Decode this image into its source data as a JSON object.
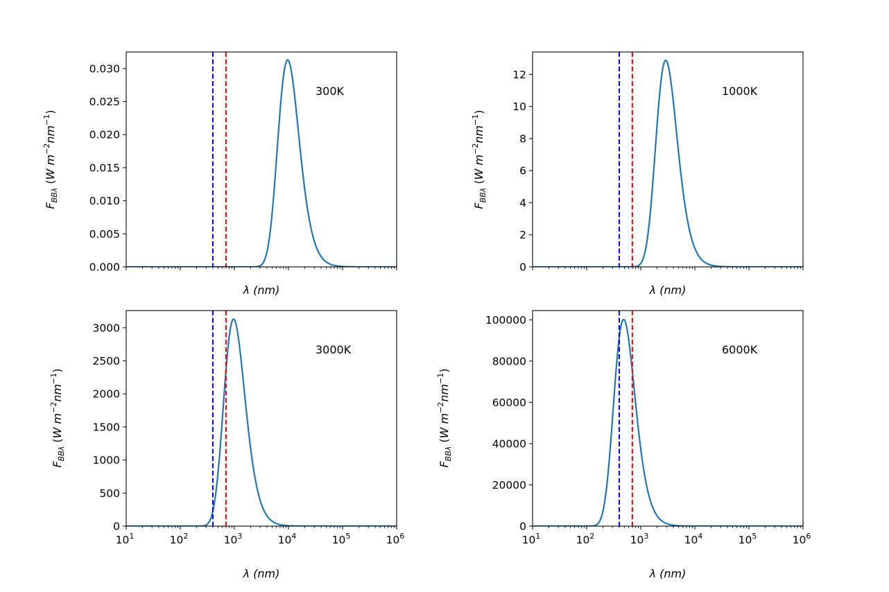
{
  "chart_data": [
    {
      "type": "line",
      "title": "",
      "annotation": "300K",
      "temperature_k": 300,
      "xlabel": "λ (nm)",
      "ylabel": "F_BBλ (W m^-2 nm^-1)",
      "ylabel_parts": {
        "main": "F",
        "sub": "BBλ",
        "units_open": " (",
        "W": "W",
        "m": "m",
        "exp1": "−2",
        "nm": "nm",
        "exp2": "−1",
        "close": ")"
      },
      "xscale": "log",
      "xlim": [
        10,
        1000000
      ],
      "ylim": [
        0,
        0.0325
      ],
      "yticks": [
        0,
        0.005,
        0.01,
        0.015,
        0.02,
        0.025,
        0.03
      ],
      "ytick_labels": [
        "0.000",
        "0.005",
        "0.010",
        "0.015",
        "0.020",
        "0.025",
        "0.030"
      ],
      "xticks_labeled": false,
      "vlines": [
        {
          "x": 400,
          "color": "#0000ff",
          "style": "dashed"
        },
        {
          "x": 700,
          "color": "#ff0000",
          "style": "dashed"
        }
      ],
      "series": [
        {
          "name": "F_BBλ",
          "color": "#1f77b4",
          "peak_wavelength_nm": 9660,
          "peak_value": 0.0311
        }
      ]
    },
    {
      "type": "line",
      "title": "",
      "annotation": "1000K",
      "temperature_k": 1000,
      "xlabel": "λ (nm)",
      "ylabel": "F_BBλ (W m^-2 nm^-1)",
      "ylabel_parts": {
        "main": "F",
        "sub": "BBλ",
        "units_open": " (",
        "W": "W",
        "m": "m",
        "exp1": "−2",
        "nm": "nm",
        "exp2": "−1",
        "close": ")"
      },
      "xscale": "log",
      "xlim": [
        10,
        1000000
      ],
      "ylim": [
        0,
        13.4
      ],
      "yticks": [
        0,
        2,
        4,
        6,
        8,
        10,
        12
      ],
      "ytick_labels": [
        "0",
        "2",
        "4",
        "6",
        "8",
        "10",
        "12"
      ],
      "xticks_labeled": false,
      "vlines": [
        {
          "x": 400,
          "color": "#0000ff",
          "style": "dashed"
        },
        {
          "x": 700,
          "color": "#ff0000",
          "style": "dashed"
        }
      ],
      "series": [
        {
          "name": "F_BBλ",
          "color": "#1f77b4",
          "peak_wavelength_nm": 2898,
          "peak_value": 12.8
        }
      ]
    },
    {
      "type": "line",
      "title": "",
      "annotation": "3000K",
      "temperature_k": 3000,
      "xlabel": "λ (nm)",
      "ylabel": "F_BBλ (W m^-2 nm^-1)",
      "ylabel_parts": {
        "main": "F",
        "sub": "BBλ",
        "units_open": " (",
        "W": "W",
        "m": "m",
        "exp1": "−2",
        "nm": "nm",
        "exp2": "−1",
        "close": ")"
      },
      "xscale": "log",
      "xlim": [
        10,
        1000000
      ],
      "ylim": [
        0,
        3260
      ],
      "yticks": [
        0,
        500,
        1000,
        1500,
        2000,
        2500,
        3000
      ],
      "ytick_labels": [
        "0",
        "500",
        "1000",
        "1500",
        "2000",
        "2500",
        "3000"
      ],
      "xticks_labeled": true,
      "xtick_labels": [
        {
          "base": "10",
          "exp": "1"
        },
        {
          "base": "10",
          "exp": "2"
        },
        {
          "base": "10",
          "exp": "3"
        },
        {
          "base": "10",
          "exp": "4"
        },
        {
          "base": "10",
          "exp": "5"
        },
        {
          "base": "10",
          "exp": "6"
        }
      ],
      "vlines": [
        {
          "x": 400,
          "color": "#0000ff",
          "style": "dashed"
        },
        {
          "x": 700,
          "color": "#ff0000",
          "style": "dashed"
        }
      ],
      "series": [
        {
          "name": "F_BBλ",
          "color": "#1f77b4",
          "peak_wavelength_nm": 966,
          "peak_value": 3110
        }
      ]
    },
    {
      "type": "line",
      "title": "",
      "annotation": "6000K",
      "temperature_k": 6000,
      "xlabel": "λ (nm)",
      "ylabel": "F_BBλ (W m^-2 nm^-1)",
      "ylabel_parts": {
        "main": "F",
        "sub": "BBλ",
        "units_open": " (",
        "W": "W",
        "m": "m",
        "exp1": "−2",
        "nm": "nm",
        "exp2": "−1",
        "close": ")"
      },
      "xscale": "log",
      "xlim": [
        10,
        1000000
      ],
      "ylim": [
        0,
        104500
      ],
      "yticks": [
        0,
        20000,
        40000,
        60000,
        80000,
        100000
      ],
      "ytick_labels": [
        "0",
        "20000",
        "40000",
        "60000",
        "80000",
        "100000"
      ],
      "xticks_labeled": true,
      "xtick_labels": [
        {
          "base": "10",
          "exp": "1"
        },
        {
          "base": "10",
          "exp": "2"
        },
        {
          "base": "10",
          "exp": "3"
        },
        {
          "base": "10",
          "exp": "4"
        },
        {
          "base": "10",
          "exp": "5"
        },
        {
          "base": "10",
          "exp": "6"
        }
      ],
      "vlines": [
        {
          "x": 400,
          "color": "#0000ff",
          "style": "dashed"
        },
        {
          "x": 700,
          "color": "#ff0000",
          "style": "dashed"
        }
      ],
      "series": [
        {
          "name": "F_BBλ",
          "color": "#1f77b4",
          "peak_wavelength_nm": 483,
          "peak_value": 99600
        }
      ]
    }
  ]
}
